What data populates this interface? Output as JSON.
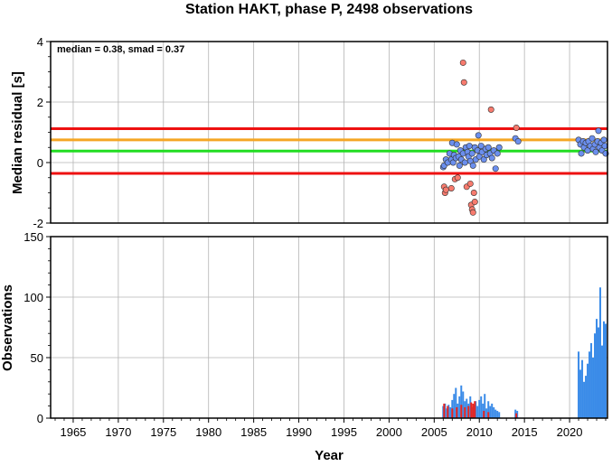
{
  "chart_data": [
    {
      "type": "scatter",
      "title": "Station HAKT, phase P, 2498 observations",
      "xlabel": "",
      "ylabel": "Median residual [s]",
      "xlim": [
        1962.5,
        2024.2
      ],
      "ylim": [
        -2,
        4
      ],
      "grid": true,
      "annotation": "median = 0.38, smad = 0.37",
      "y_ticks": [
        "-2",
        "0",
        "2",
        "4"
      ],
      "reference_lines": [
        {
          "y": 1.12,
          "color": "#ee1111"
        },
        {
          "y": 0.75,
          "color": "#f5a623"
        },
        {
          "y": 0.38,
          "color": "#22dd22"
        },
        {
          "y": -0.36,
          "color": "#ee1111"
        }
      ],
      "series": [
        {
          "color": "#6b8fee",
          "points": [
            [
              2006.0,
              -0.15
            ],
            [
              2006.1,
              -0.1
            ],
            [
              2006.3,
              0.1
            ],
            [
              2006.5,
              0.0
            ],
            [
              2006.7,
              0.3
            ],
            [
              2006.9,
              0.1
            ],
            [
              2007.0,
              0.65
            ],
            [
              2007.1,
              0.0
            ],
            [
              2007.2,
              0.25
            ],
            [
              2007.4,
              0.15
            ],
            [
              2007.5,
              0.6
            ],
            [
              2007.7,
              0.2
            ],
            [
              2007.8,
              -0.1
            ],
            [
              2007.9,
              0.4
            ],
            [
              2008.0,
              0.1
            ],
            [
              2008.2,
              0.3
            ],
            [
              2008.4,
              0.0
            ],
            [
              2008.5,
              0.5
            ],
            [
              2008.7,
              0.35
            ],
            [
              2008.8,
              0.2
            ],
            [
              2008.9,
              0.55
            ],
            [
              2009.0,
              0.05
            ],
            [
              2009.2,
              0.3
            ],
            [
              2009.3,
              -0.1
            ],
            [
              2009.5,
              0.5
            ],
            [
              2009.6,
              0.1
            ],
            [
              2009.8,
              0.4
            ],
            [
              2009.9,
              0.9
            ],
            [
              2010.0,
              0.2
            ],
            [
              2010.2,
              0.55
            ],
            [
              2010.3,
              0.35
            ],
            [
              2010.5,
              0.1
            ],
            [
              2010.7,
              0.45
            ],
            [
              2010.8,
              0.25
            ],
            [
              2011.0,
              0.5
            ],
            [
              2011.2,
              0.3
            ],
            [
              2011.4,
              0.15
            ],
            [
              2011.6,
              0.4
            ],
            [
              2011.8,
              -0.2
            ],
            [
              2012.0,
              0.3
            ],
            [
              2012.2,
              0.5
            ],
            [
              2014.0,
              0.8
            ],
            [
              2014.3,
              0.7
            ],
            [
              2021.0,
              0.75
            ],
            [
              2021.2,
              0.6
            ],
            [
              2021.3,
              0.3
            ],
            [
              2021.5,
              0.7
            ],
            [
              2021.6,
              0.5
            ],
            [
              2021.8,
              0.65
            ],
            [
              2022.0,
              0.4
            ],
            [
              2022.1,
              0.7
            ],
            [
              2022.3,
              0.55
            ],
            [
              2022.5,
              0.8
            ],
            [
              2022.6,
              0.45
            ],
            [
              2022.8,
              0.6
            ],
            [
              2022.9,
              0.35
            ],
            [
              2023.1,
              0.7
            ],
            [
              2023.2,
              1.05
            ],
            [
              2023.3,
              0.5
            ],
            [
              2023.5,
              0.65
            ],
            [
              2023.6,
              0.4
            ],
            [
              2023.8,
              0.75
            ],
            [
              2023.9,
              0.55
            ],
            [
              2024.0,
              0.3
            ]
          ]
        },
        {
          "color": "#f77b6e",
          "points": [
            [
              2006.1,
              -0.8
            ],
            [
              2006.2,
              -1.0
            ],
            [
              2006.3,
              -0.9
            ],
            [
              2006.9,
              -0.85
            ],
            [
              2007.3,
              -0.55
            ],
            [
              2007.6,
              -0.5
            ],
            [
              2008.2,
              3.3
            ],
            [
              2008.3,
              2.65
            ],
            [
              2008.6,
              -0.8
            ],
            [
              2009.0,
              -0.7
            ],
            [
              2009.1,
              -1.4
            ],
            [
              2009.2,
              -1.55
            ],
            [
              2009.3,
              -1.65
            ],
            [
              2009.4,
              -1.0
            ],
            [
              2009.5,
              -1.3
            ],
            [
              2011.3,
              1.75
            ],
            [
              2014.1,
              1.15
            ]
          ]
        }
      ]
    },
    {
      "type": "bar",
      "xlabel": "Year",
      "ylabel": "Observations",
      "xlim": [
        1962.5,
        2024.2
      ],
      "ylim": [
        0,
        150
      ],
      "grid": true,
      "x_ticks": [
        "1965",
        "1970",
        "1975",
        "1980",
        "1985",
        "1990",
        "1995",
        "2000",
        "2005",
        "2010",
        "2015",
        "2020"
      ],
      "y_ticks": [
        "0",
        "50",
        "100",
        "150"
      ],
      "series": [
        {
          "color": "#3a8be8",
          "x": [
            2006.0,
            2006.2,
            2006.4,
            2006.6,
            2006.8,
            2007.0,
            2007.2,
            2007.4,
            2007.6,
            2007.8,
            2008.0,
            2008.2,
            2008.4,
            2008.6,
            2008.8,
            2009.0,
            2009.2,
            2009.4,
            2009.6,
            2009.8,
            2010.0,
            2010.2,
            2010.4,
            2010.6,
            2010.8,
            2011.0,
            2011.2,
            2011.4,
            2011.6,
            2011.8,
            2012.0,
            2012.2,
            2014.0,
            2014.2,
            2021.0,
            2021.2,
            2021.4,
            2021.6,
            2021.8,
            2022.0,
            2022.2,
            2022.4,
            2022.6,
            2022.8,
            2023.0,
            2023.2,
            2023.4,
            2023.6,
            2023.8,
            2024.0
          ],
          "values": [
            10,
            12,
            8,
            11,
            9,
            15,
            20,
            25,
            12,
            18,
            27,
            22,
            14,
            16,
            12,
            18,
            9,
            11,
            14,
            10,
            15,
            18,
            12,
            20,
            8,
            14,
            10,
            12,
            9,
            7,
            6,
            5,
            7,
            6,
            55,
            40,
            48,
            30,
            35,
            45,
            55,
            62,
            50,
            70,
            82,
            75,
            108,
            60,
            80,
            78
          ]
        },
        {
          "color": "#e8241f",
          "x": [
            2006.1,
            2006.5,
            2007.0,
            2007.5,
            2008.0,
            2008.4,
            2008.8,
            2009.1,
            2009.3,
            2009.5,
            2010.5,
            2011.0,
            2014.1
          ],
          "values": [
            12,
            10,
            8,
            9,
            11,
            9,
            10,
            13,
            12,
            14,
            6,
            5,
            4
          ]
        }
      ]
    }
  ]
}
